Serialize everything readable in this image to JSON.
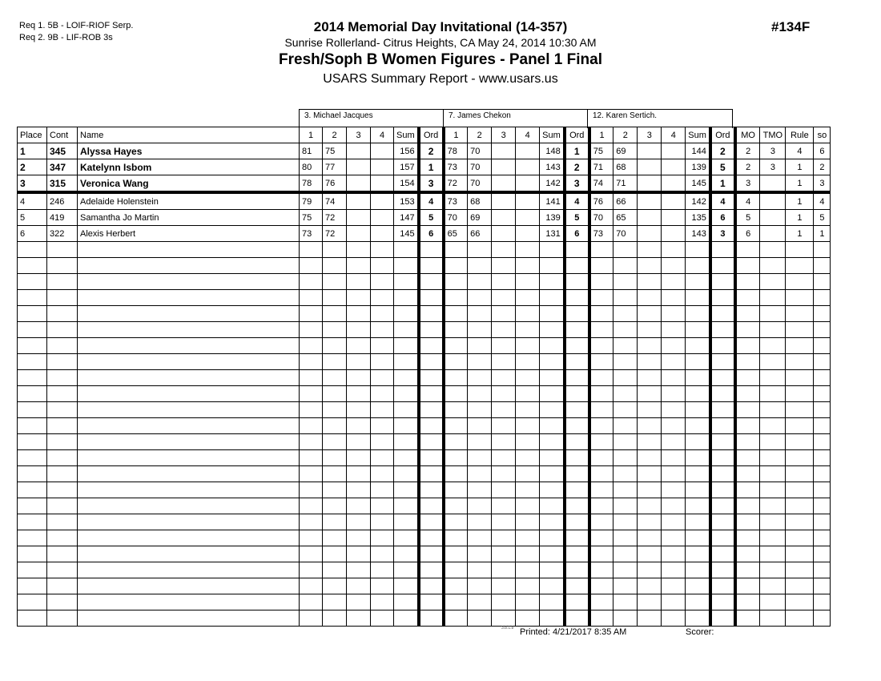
{
  "requirements": [
    "Req  1.  5B - LOIF-RIOF Serp.",
    "Req  2.  9B - LIF-ROB 3s"
  ],
  "title": "2014  Memorial Day Invitational (14-357)",
  "subtitle": "Sunrise Rollerland- Citrus Heights, CA  May 24, 2014  10:30 AM",
  "event": "Fresh/Soph B Women Figures - Panel 1 Final",
  "report": "USARS Summary Report - www.usars.us",
  "event_number": "#134F",
  "judges": [
    "3.  Michael Jacques",
    "7.  James Chekon",
    "12.  Karen Sertich."
  ],
  "headers": {
    "place": "Place",
    "cont": "Cont",
    "name": "Name",
    "marks": [
      "1",
      "2",
      "3",
      "4"
    ],
    "sum": "Sum",
    "ord": "Ord",
    "mo": "MO",
    "tmo": "TMO",
    "rule": "Rule",
    "so": "so"
  },
  "rows": [
    {
      "place": "1",
      "cont": "345",
      "name": "Alyssa Hayes",
      "j": [
        [
          "81",
          "75",
          "",
          "",
          "156",
          "2"
        ],
        [
          "78",
          "70",
          "",
          "",
          "148",
          "1"
        ],
        [
          "75",
          "69",
          "",
          "",
          "144",
          "2"
        ]
      ],
      "mo": "2",
      "tmo": "3",
      "rule": "4",
      "so": "6"
    },
    {
      "place": "2",
      "cont": "347",
      "name": "Katelynn Isbom",
      "j": [
        [
          "80",
          "77",
          "",
          "",
          "157",
          "1"
        ],
        [
          "73",
          "70",
          "",
          "",
          "143",
          "2"
        ],
        [
          "71",
          "68",
          "",
          "",
          "139",
          "5"
        ]
      ],
      "mo": "2",
      "tmo": "3",
      "rule": "1",
      "so": "2"
    },
    {
      "place": "3",
      "cont": "315",
      "name": "Veronica Wang",
      "j": [
        [
          "78",
          "76",
          "",
          "",
          "154",
          "3"
        ],
        [
          "72",
          "70",
          "",
          "",
          "142",
          "3"
        ],
        [
          "74",
          "71",
          "",
          "",
          "145",
          "1"
        ]
      ],
      "mo": "3",
      "tmo": "",
      "rule": "1",
      "so": "3"
    },
    {
      "place": "4",
      "cont": "246",
      "name": "Adelaide Holenstein",
      "j": [
        [
          "79",
          "74",
          "",
          "",
          "153",
          "4"
        ],
        [
          "73",
          "68",
          "",
          "",
          "141",
          "4"
        ],
        [
          "76",
          "66",
          "",
          "",
          "142",
          "4"
        ]
      ],
      "mo": "4",
      "tmo": "",
      "rule": "1",
      "so": "4"
    },
    {
      "place": "5",
      "cont": "419",
      "name": "Samantha Jo Martin",
      "j": [
        [
          "75",
          "72",
          "",
          "",
          "147",
          "5"
        ],
        [
          "70",
          "69",
          "",
          "",
          "139",
          "5"
        ],
        [
          "70",
          "65",
          "",
          "",
          "135",
          "6"
        ]
      ],
      "mo": "5",
      "tmo": "",
      "rule": "1",
      "so": "5"
    },
    {
      "place": "6",
      "cont": "322",
      "name": "Alexis Herbert",
      "j": [
        [
          "73",
          "72",
          "",
          "",
          "145",
          "6"
        ],
        [
          "65",
          "66",
          "",
          "",
          "131",
          "6"
        ],
        [
          "73",
          "70",
          "",
          "",
          "143",
          "3"
        ]
      ],
      "mo": "6",
      "tmo": "",
      "rule": "1",
      "so": "1"
    }
  ],
  "footer": {
    "version": "3.8.1.8",
    "printed": "Printed:  4/21/2017  8:35 AM",
    "scorer": "Scorer:"
  }
}
